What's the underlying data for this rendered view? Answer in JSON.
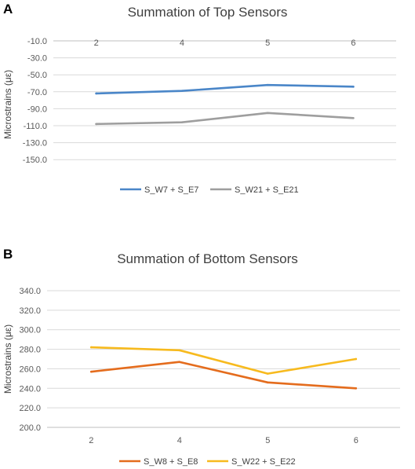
{
  "panels": [
    {
      "letter": "A",
      "chart_data": {
        "type": "line",
        "title": "Summation of Top Sensors",
        "xlabel": "",
        "ylabel": "Microstrains (με)",
        "categories": [
          "2",
          "4",
          "5",
          "6"
        ],
        "y_ticks": [
          "-10.0",
          "-30.0",
          "-50.0",
          "-70.0",
          "-90.0",
          "-110.0",
          "-130.0",
          "-150.0"
        ],
        "ylim": [
          -160,
          -10
        ],
        "x_axis_position": "top",
        "grid": true,
        "legend_position": "bottom",
        "series": [
          {
            "name": "S_W7 + S_E7",
            "color": "#4A86C8",
            "values": [
              -72,
              -69,
              -62,
              -64
            ]
          },
          {
            "name": "S_W21 + S_E21",
            "color": "#9E9E9E",
            "values": [
              -108,
              -106,
              -95,
              -101
            ]
          }
        ]
      }
    },
    {
      "letter": "B",
      "chart_data": {
        "type": "line",
        "title": "Summation of Bottom Sensors",
        "xlabel": "",
        "ylabel": "Microstrains (με)",
        "categories": [
          "2",
          "4",
          "5",
          "6"
        ],
        "y_ticks": [
          "340.0",
          "320.0",
          "300.0",
          "280.0",
          "260.0",
          "240.0",
          "220.0",
          "200.0"
        ],
        "ylim": [
          200,
          340
        ],
        "x_axis_position": "bottom",
        "grid": true,
        "legend_position": "bottom",
        "series": [
          {
            "name": "S_W8 + S_E8",
            "color": "#E46C1D",
            "values": [
              257,
              267,
              246,
              240
            ]
          },
          {
            "name": "S_W22 + S_E22",
            "color": "#F7BA1E",
            "values": [
              282,
              279,
              255,
              270
            ]
          }
        ]
      }
    }
  ]
}
